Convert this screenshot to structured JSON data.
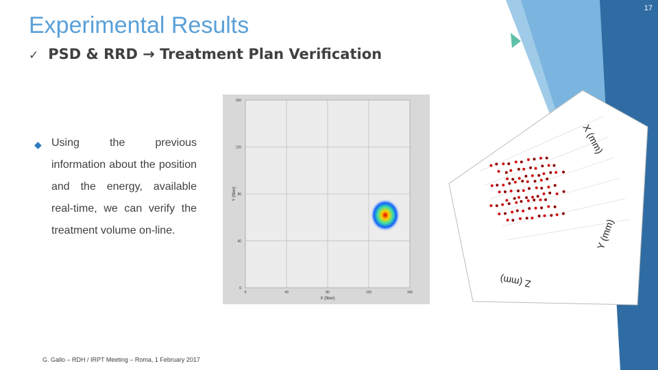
{
  "slide_number": "17",
  "title": "Experimental Results",
  "subtitle": "PSD & RRD → Treatment Plan Verification",
  "bullet": "Using the previous information about the position and the energy, available real-time, we can verify the treatment volume on-line.",
  "footer": "G. Gallo – RDH / IRPT Meeting – Roma, 1 February 2017",
  "heatmap": {
    "x_label": "X (fiber)",
    "y_label": "Y (fiber)",
    "x_ticks": [
      "0",
      "40",
      "80",
      "120",
      "160"
    ],
    "y_ticks": [
      "0",
      "40",
      "80",
      "120",
      "160"
    ]
  },
  "plot3d": {
    "x_label": "X (mm)",
    "y_label": "Y (mm)",
    "z_label": "Z (mm)"
  }
}
